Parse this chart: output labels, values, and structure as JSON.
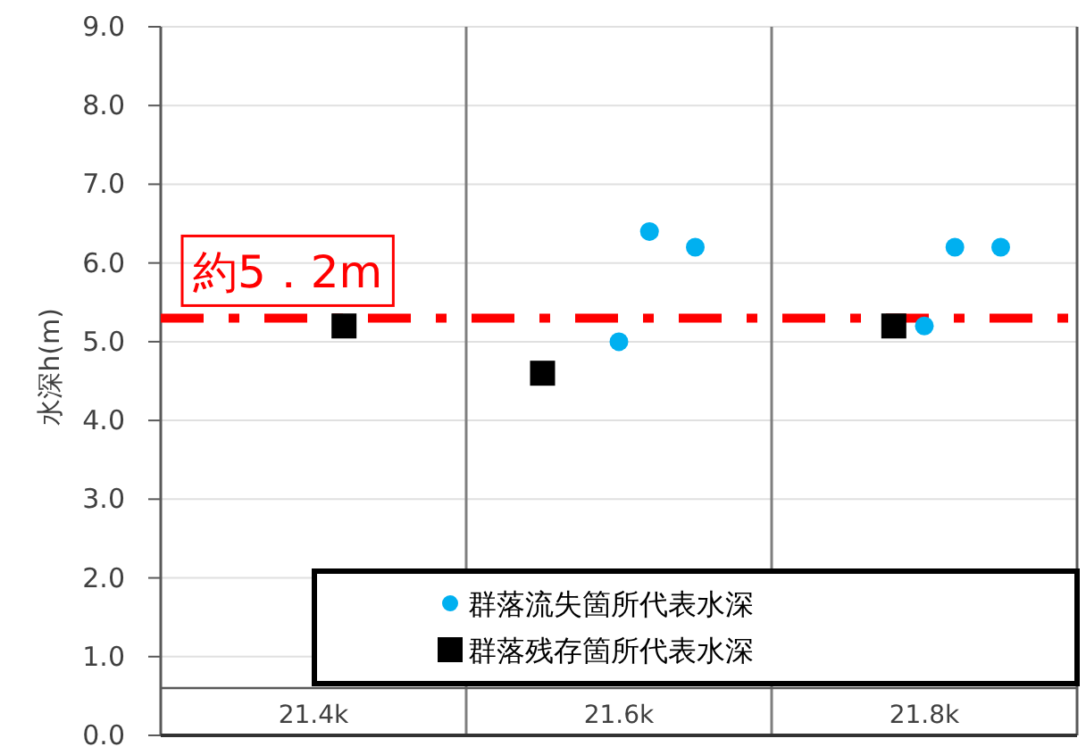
{
  "chart_data": {
    "type": "scatter",
    "ylabel": "水深h(m)",
    "xlim": [
      21.3,
      21.9
    ],
    "xticks": [
      {
        "value": 21.4,
        "label": "21.4k"
      },
      {
        "value": 21.6,
        "label": "21.6k"
      },
      {
        "value": 21.8,
        "label": "21.8k"
      }
    ],
    "ylim": [
      0,
      9
    ],
    "yticks": [
      {
        "value": 0,
        "label": "0.0"
      },
      {
        "value": 1,
        "label": "1.0"
      },
      {
        "value": 2,
        "label": "2.0"
      },
      {
        "value": 3,
        "label": "3.0"
      },
      {
        "value": 4,
        "label": "4.0"
      },
      {
        "value": 5,
        "label": "5.0"
      },
      {
        "value": 6,
        "label": "6.0"
      },
      {
        "value": 7,
        "label": "7.0"
      },
      {
        "value": 8,
        "label": "8.0"
      },
      {
        "value": 9,
        "label": "9.0"
      }
    ],
    "grid": "y",
    "legend": "bottom right",
    "series": [
      {
        "name": "群落流失箇所代表水深",
        "color": "#00b0f0",
        "marker": "circle",
        "x": [
          21.6,
          21.62,
          21.65,
          21.8,
          21.82,
          21.85
        ],
        "values": [
          5.0,
          6.4,
          6.2,
          5.2,
          6.2,
          6.2
        ]
      },
      {
        "name": "群落残存箇所代表水深",
        "color": "#000000",
        "marker": "square",
        "x": [
          21.42,
          21.55,
          21.78
        ],
        "values": [
          5.2,
          4.6,
          5.2
        ]
      }
    ],
    "ref_lines": [
      {
        "axis": "x",
        "value": 21.5,
        "color": "#7f7f7f",
        "line_style": "solid"
      },
      {
        "axis": "x",
        "value": 21.7,
        "color": "#7f7f7f",
        "line_style": "solid"
      },
      {
        "axis": "y",
        "value": 0.6,
        "color": "#595959",
        "line_style": "solid"
      },
      {
        "axis": "y",
        "value": 5.3,
        "label": "約5．2m",
        "color": "#ff0000",
        "line_style": "dashdot"
      }
    ]
  }
}
